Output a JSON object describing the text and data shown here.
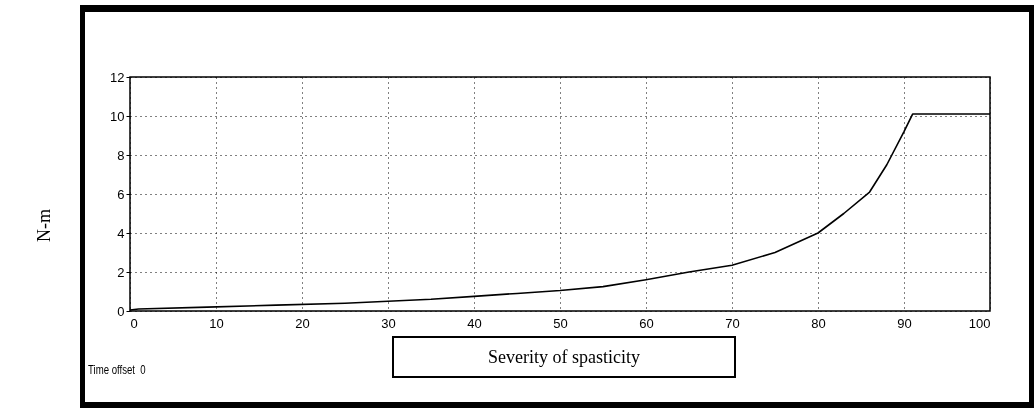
{
  "chart_data": {
    "type": "line",
    "xlabel": "Severity of spasticity",
    "ylabel": "N-m",
    "annotations": [
      "Time offset  0"
    ],
    "x": [
      0,
      1,
      9,
      17,
      25,
      30,
      35,
      40,
      45,
      50,
      55,
      60,
      65,
      70,
      75,
      80,
      83,
      86,
      88,
      90,
      91,
      100
    ],
    "series": [
      {
        "color": "#000000",
        "values": [
          0.05,
          0.1,
          0.2,
          0.3,
          0.4,
          0.5,
          0.6,
          0.75,
          0.9,
          1.05,
          1.25,
          1.6,
          2.0,
          2.35,
          3.0,
          4.0,
          5.0,
          6.1,
          7.5,
          9.2,
          10.1,
          10.1
        ]
      }
    ],
    "xlim": [
      0,
      100
    ],
    "xticks": [
      0,
      10,
      20,
      30,
      40,
      50,
      60,
      70,
      80,
      90,
      100
    ],
    "ylim": [
      0,
      12
    ],
    "yticks": [
      0,
      2,
      4,
      6,
      8,
      10,
      12
    ],
    "grid": true,
    "line_style": "solid",
    "marker": "none"
  }
}
